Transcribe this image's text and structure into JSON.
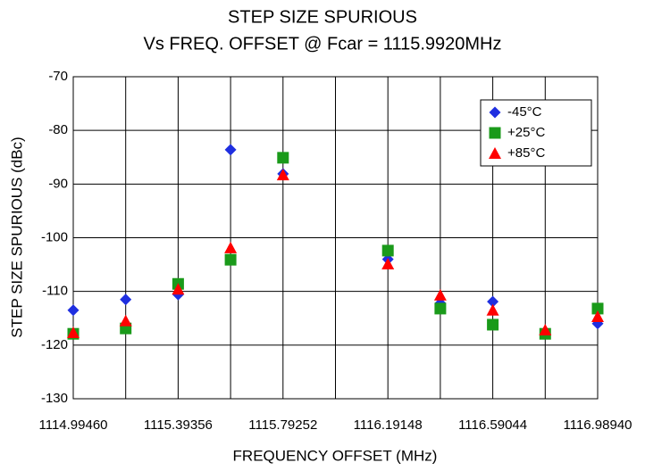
{
  "chart_data": {
    "type": "scatter",
    "title": "STEP SIZE SPURIOUS",
    "subtitle": "Vs FREQ. OFFSET @ Fcar = 1115.9920MHz",
    "x_label": "FREQUENCY OFFSET (MHz)",
    "y_label": "STEP SIZE SPURIOUS (dBc)",
    "x": [
      1114.9946,
      1115.19408,
      1115.39356,
      1115.59304,
      1115.79252,
      1116.19148,
      1116.39096,
      1116.59044,
      1116.78992,
      1116.9894
    ],
    "series": [
      {
        "name": "-45°C",
        "color": "#1f2fe0",
        "marker": "diamond",
        "values": [
          -113.5,
          -111.5,
          -110.6,
          -83.6,
          -88.1,
          -104.0,
          -112.2,
          -111.9,
          -117.9,
          -116.0
        ]
      },
      {
        "name": "+25°C",
        "color": "#1a9a1a",
        "marker": "square",
        "values": [
          -117.9,
          -116.9,
          -108.6,
          -104.1,
          -85.1,
          -102.4,
          -113.2,
          -116.2,
          -117.9,
          -113.2
        ]
      },
      {
        "name": "+85°C",
        "color": "#ff0000",
        "marker": "triangle",
        "values": [
          -117.7,
          -115.5,
          -109.6,
          -101.9,
          -88.3,
          -104.9,
          -110.7,
          -113.5,
          -117.2,
          -114.7
        ]
      }
    ],
    "xlim": [
      1114.9946,
      1116.9894
    ],
    "xticks": [
      {
        "value": 1114.9946,
        "label": "1114.99460"
      },
      {
        "value": 1115.39356,
        "label": "1115.39356"
      },
      {
        "value": 1115.79252,
        "label": "1115.79252"
      },
      {
        "value": 1116.19148,
        "label": "1116.19148"
      },
      {
        "value": 1116.59044,
        "label": "1116.59044"
      },
      {
        "value": 1116.9894,
        "label": "1116.98940"
      }
    ],
    "ylim": [
      -130,
      -70
    ],
    "yticks": [
      -130,
      -120,
      -110,
      -100,
      -90,
      -80,
      -70
    ],
    "grid": true,
    "legend": "upper right"
  }
}
